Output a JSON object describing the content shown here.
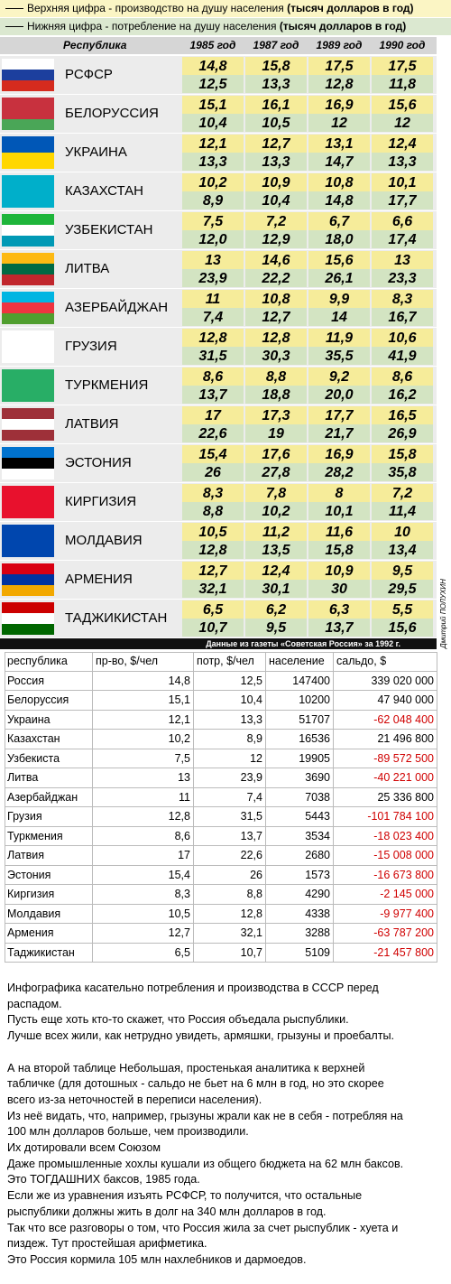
{
  "legend": {
    "top": "Верхняя цифра - производство на душу населения",
    "top_unit": "(тысяч долларов в год)",
    "bottom": "Нижняя цифра - потребление на душу населения",
    "bottom_unit": "(тысяч долларов в год)"
  },
  "infographic": {
    "header": [
      "Республика",
      "1985 год",
      "1987 год",
      "1989 год",
      "1990 год"
    ],
    "rows": [
      {
        "name": "РСФСР",
        "production": [
          "14,8",
          "15,8",
          "17,5",
          "17,5"
        ],
        "consumption": [
          "12,5",
          "13,3",
          "12,8",
          "11,8"
        ]
      },
      {
        "name": "БЕЛОРУССИЯ",
        "production": [
          "15,1",
          "16,1",
          "16,9",
          "15,6"
        ],
        "consumption": [
          "10,4",
          "10,5",
          "12",
          "12"
        ]
      },
      {
        "name": "УКРАИНА",
        "production": [
          "12,1",
          "12,7",
          "13,1",
          "12,4"
        ],
        "consumption": [
          "13,3",
          "13,3",
          "14,7",
          "13,3"
        ]
      },
      {
        "name": "КАЗАХСТАН",
        "production": [
          "10,2",
          "10,9",
          "10,8",
          "10,1"
        ],
        "consumption": [
          "8,9",
          "10,4",
          "14,8",
          "17,7"
        ]
      },
      {
        "name": "УЗБЕКИСТАН",
        "production": [
          "7,5",
          "7,2",
          "6,7",
          "6,6"
        ],
        "consumption": [
          "12,0",
          "12,9",
          "18,0",
          "17,4"
        ]
      },
      {
        "name": "ЛИТВА",
        "production": [
          "13",
          "14,6",
          "15,6",
          "13"
        ],
        "consumption": [
          "23,9",
          "22,2",
          "26,1",
          "23,3"
        ]
      },
      {
        "name": "АЗЕРБАЙДЖАН",
        "production": [
          "11",
          "10,8",
          "9,9",
          "8,3"
        ],
        "consumption": [
          "7,4",
          "12,7",
          "14",
          "16,7"
        ]
      },
      {
        "name": "ГРУЗИЯ",
        "production": [
          "12,8",
          "12,8",
          "11,9",
          "10,6"
        ],
        "consumption": [
          "31,5",
          "30,3",
          "35,5",
          "41,9"
        ]
      },
      {
        "name": "ТУРКМЕНИЯ",
        "production": [
          "8,6",
          "8,8",
          "9,2",
          "8,6"
        ],
        "consumption": [
          "13,7",
          "18,8",
          "20,0",
          "16,2"
        ]
      },
      {
        "name": "ЛАТВИЯ",
        "production": [
          "17",
          "17,3",
          "17,7",
          "16,5"
        ],
        "consumption": [
          "22,6",
          "19",
          "21,7",
          "26,9"
        ]
      },
      {
        "name": "ЭСТОНИЯ",
        "production": [
          "15,4",
          "17,6",
          "16,9",
          "15,8"
        ],
        "consumption": [
          "26",
          "27,8",
          "28,2",
          "35,8"
        ]
      },
      {
        "name": "КИРГИЗИЯ",
        "production": [
          "8,3",
          "7,8",
          "8",
          "7,2"
        ],
        "consumption": [
          "8,8",
          "10,2",
          "10,1",
          "11,4"
        ]
      },
      {
        "name": "МОЛДАВИЯ",
        "production": [
          "10,5",
          "11,2",
          "11,6",
          "10"
        ],
        "consumption": [
          "12,8",
          "13,5",
          "15,8",
          "13,4"
        ]
      },
      {
        "name": "АРМЕНИЯ",
        "production": [
          "12,7",
          "12,4",
          "10,9",
          "9,5"
        ],
        "consumption": [
          "32,1",
          "30,1",
          "30",
          "29,5"
        ]
      },
      {
        "name": "ТАДЖИКИСТАН",
        "production": [
          "6,5",
          "6,2",
          "6,3",
          "5,5"
        ],
        "consumption": [
          "10,7",
          "9,5",
          "13,7",
          "15,6"
        ]
      }
    ],
    "source": "Данные из газеты «Советская Россия» за 1992 г.",
    "credit": "Дмитрий ПОЛУХИН"
  },
  "table": {
    "header": [
      "республика",
      "пр-во, $/чел",
      "потр, $/чел",
      "население",
      "сальдо, $"
    ],
    "rows": [
      [
        "Россия",
        "14,8",
        "12,5",
        "147400",
        "339 020 000"
      ],
      [
        "Белоруссия",
        "15,1",
        "10,4",
        "10200",
        "47 940 000"
      ],
      [
        "Украина",
        "12,1",
        "13,3",
        "51707",
        "-62 048 400"
      ],
      [
        "Казахстан",
        "10,2",
        "8,9",
        "16536",
        "21 496 800"
      ],
      [
        "Узбекиста",
        "7,5",
        "12",
        "19905",
        "-89 572 500"
      ],
      [
        "Литва",
        "13",
        "23,9",
        "3690",
        "-40 221 000"
      ],
      [
        "Азербайджан",
        "11",
        "7,4",
        "7038",
        "25 336 800"
      ],
      [
        "Грузия",
        "12,8",
        "31,5",
        "5443",
        "-101 784 100"
      ],
      [
        "Туркмения",
        "8,6",
        "13,7",
        "3534",
        "-18 023 400"
      ],
      [
        "Латвия",
        "17",
        "22,6",
        "2680",
        "-15 008 000"
      ],
      [
        "Эстония",
        "15,4",
        "26",
        "1573",
        "-16 673 800"
      ],
      [
        "Киргизия",
        "8,3",
        "8,8",
        "4290",
        "-2 145 000"
      ],
      [
        "Молдавия",
        "10,5",
        "12,8",
        "4338",
        "-9 977 400"
      ],
      [
        "Армения",
        "12,7",
        "32,1",
        "3288",
        "-63 787 200"
      ],
      [
        "Таджикистан",
        "6,5",
        "10,7",
        "5109",
        "-21 457 800"
      ]
    ]
  },
  "text": {
    "lines": [
      "Инфографика касательно потребления и производства в СССР перед",
      "распадом.",
      "Пусть еще хоть кто-то скажет, что Россия объедала рыспублики.",
      "Лучше всех жили, как нетрудно увидеть, армяшки, грызуны и проебалты.",
      null,
      "А на второй таблице Небольшая, простенькая аналитика к верхней",
      "табличке (для дотошных - сальдо не бьет на 6 млн в год, но это скорее",
      "всего из-за неточностей в переписи населения).",
      "Из неё видать, что, например, грызуны жрали как не в себя - потребляя на",
      "100 млн долларов больше, чем производили.",
      "Их дотировали всем Союзом",
      "Даже промышленные хохлы кушали из общего бюджета на 62 млн баксов.",
      "Это ТОГДАШНИХ баксов, 1985 года.",
      "Если же из уравнения изъять РСФСР, то получится, что остальные",
      "рыспублики должны жить в долг на 340 млн долларов в год.",
      "Так что все разговоры о том, что Россия жила за счет рыспублик - хуета и",
      "пиздеж. Тут простейшая арифметика.",
      "Это Россия кормила 105 млн нахлебников и дармоедов."
    ]
  }
}
